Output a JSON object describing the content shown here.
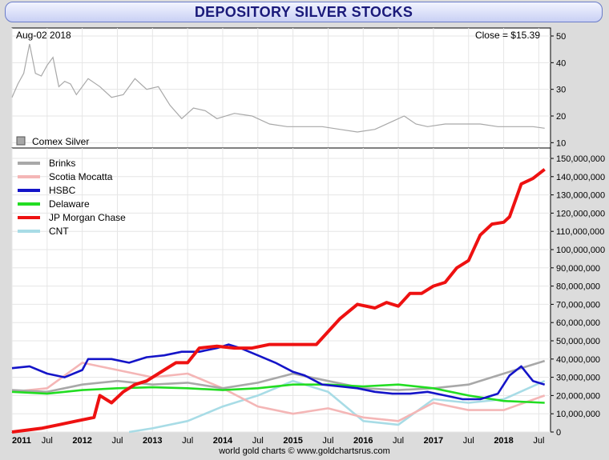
{
  "title": "DEPOSITORY SILVER STOCKS",
  "footer": "world gold charts © www.goldchartsrus.com",
  "colors": {
    "background": "#dcdcdc",
    "title_text": "#1a1a7a",
    "Brinks": "#a8a8a8",
    "Scotia Mocatta": "#f4b6b6",
    "HSBC": "#1414c8",
    "Delaware": "#22dd22",
    "JP Morgan Chase": "#ee1111",
    "CNT": "#a8dce6",
    "Comex Silver": "#a8a8a8"
  },
  "chart_data": [
    {
      "type": "line",
      "date_label": "Aug-02  2018",
      "close_label": "Close = $15.39",
      "legend": [
        "Comex Silver"
      ],
      "y_ticks": [
        10,
        20,
        30,
        40,
        50
      ],
      "ylim": [
        8,
        53
      ],
      "xlim": [
        "2011-01",
        "2018-09"
      ],
      "series": [
        {
          "name": "Comex Silver",
          "x": [
            "2011-01",
            "2011-02",
            "2011-03",
            "2011-04",
            "2011-05",
            "2011-06",
            "2011-07",
            "2011-08",
            "2011-09",
            "2011-10",
            "2011-11",
            "2011-12",
            "2012-02",
            "2012-04",
            "2012-06",
            "2012-08",
            "2012-10",
            "2012-12",
            "2013-02",
            "2013-04",
            "2013-06",
            "2013-08",
            "2013-10",
            "2013-12",
            "2014-03",
            "2014-06",
            "2014-09",
            "2014-12",
            "2015-03",
            "2015-06",
            "2015-09",
            "2015-12",
            "2016-03",
            "2016-06",
            "2016-08",
            "2016-10",
            "2016-12",
            "2017-03",
            "2017-06",
            "2017-09",
            "2017-12",
            "2018-03",
            "2018-06",
            "2018-08"
          ],
          "values": [
            27,
            32,
            36,
            47,
            36,
            35,
            39,
            42,
            31,
            33,
            32,
            28,
            34,
            31,
            27,
            28,
            34,
            30,
            31,
            24,
            19,
            23,
            22,
            19,
            21,
            20,
            17,
            16,
            16,
            16,
            15,
            14,
            15,
            18,
            20,
            17,
            16,
            17,
            17,
            17,
            16,
            16,
            16,
            15.4
          ]
        }
      ]
    },
    {
      "type": "line",
      "legend": [
        "Brinks",
        "Scotia Mocatta",
        "HSBC",
        "Delaware",
        "JP Morgan Chase",
        "CNT"
      ],
      "x_ticks": [
        "2011",
        "Jul",
        "2012",
        "Jul",
        "2013",
        "Jul",
        "2014",
        "Jul",
        "2015",
        "Jul",
        "2016",
        "Jul",
        "2017",
        "Jul",
        "2018",
        "Jul"
      ],
      "y_ticks": [
        "0",
        "10,000,000",
        "20,000,000",
        "30,000,000",
        "40,000,000",
        "50,000,000",
        "60,000,000",
        "70,000,000",
        "80,000,000",
        "90,000,000",
        "100,000,000",
        "110,000,000",
        "120,000,000",
        "130,000,000",
        "140,000,000",
        "150,000,000"
      ],
      "ylim": [
        0,
        150000000
      ],
      "xlim": [
        "2011-01",
        "2018-09"
      ],
      "series": [
        {
          "name": "JP Morgan Chase",
          "x": [
            "2011-01",
            "2011-06",
            "2011-09",
            "2011-12",
            "2012-03",
            "2012-04",
            "2012-06",
            "2012-08",
            "2012-10",
            "2012-12",
            "2013-03",
            "2013-05",
            "2013-07",
            "2013-09",
            "2013-12",
            "2014-03",
            "2014-06",
            "2014-09",
            "2014-12",
            "2015-03",
            "2015-05",
            "2015-07",
            "2015-09",
            "2015-12",
            "2016-03",
            "2016-05",
            "2016-07",
            "2016-09",
            "2016-11",
            "2017-01",
            "2017-03",
            "2017-05",
            "2017-07",
            "2017-09",
            "2017-11",
            "2018-01",
            "2018-02",
            "2018-04",
            "2018-06",
            "2018-08"
          ],
          "values": [
            0,
            2000000,
            4000000,
            6000000,
            8000000,
            20000000,
            16000000,
            22000000,
            26000000,
            28000000,
            34000000,
            38000000,
            38000000,
            46000000,
            47000000,
            46000000,
            46000000,
            48000000,
            48000000,
            48000000,
            48000000,
            55000000,
            62000000,
            70000000,
            68000000,
            71000000,
            69000000,
            76000000,
            76000000,
            80000000,
            82000000,
            90000000,
            94000000,
            108000000,
            114000000,
            115000000,
            118000000,
            136000000,
            139000000,
            144000000
          ]
        },
        {
          "name": "HSBC",
          "x": [
            "2011-01",
            "2011-04",
            "2011-07",
            "2011-10",
            "2012-01",
            "2012-02",
            "2012-06",
            "2012-09",
            "2012-12",
            "2013-03",
            "2013-06",
            "2013-09",
            "2013-12",
            "2014-02",
            "2014-04",
            "2014-07",
            "2014-10",
            "2015-01",
            "2015-03",
            "2015-06",
            "2015-09",
            "2015-12",
            "2016-03",
            "2016-06",
            "2016-09",
            "2016-12",
            "2017-03",
            "2017-06",
            "2017-09",
            "2017-12",
            "2018-02",
            "2018-04",
            "2018-06",
            "2018-08"
          ],
          "values": [
            35000000,
            36000000,
            32000000,
            30000000,
            34000000,
            40000000,
            40000000,
            38000000,
            41000000,
            42000000,
            44000000,
            44000000,
            46000000,
            48000000,
            46000000,
            42000000,
            38000000,
            33000000,
            31000000,
            26000000,
            25000000,
            24000000,
            22000000,
            21000000,
            21000000,
            22000000,
            20000000,
            18000000,
            18000000,
            21000000,
            31000000,
            36000000,
            28000000,
            26000000
          ]
        },
        {
          "name": "Delaware",
          "x": [
            "2011-01",
            "2011-07",
            "2012-01",
            "2012-07",
            "2013-01",
            "2013-07",
            "2014-01",
            "2014-07",
            "2015-01",
            "2015-07",
            "2016-01",
            "2016-07",
            "2017-01",
            "2017-07",
            "2018-01",
            "2018-08"
          ],
          "values": [
            22000000,
            21000000,
            23000000,
            24000000,
            24500000,
            24000000,
            23000000,
            24000000,
            26000000,
            26000000,
            25000000,
            26000000,
            24000000,
            20000000,
            17000000,
            16000000
          ]
        },
        {
          "name": "Brinks",
          "x": [
            "2011-01",
            "2011-07",
            "2012-01",
            "2012-07",
            "2013-01",
            "2013-07",
            "2014-01",
            "2014-07",
            "2015-01",
            "2015-07",
            "2016-01",
            "2016-07",
            "2017-01",
            "2017-07",
            "2018-01",
            "2018-08"
          ],
          "values": [
            23000000,
            22000000,
            26000000,
            28000000,
            26000000,
            27000000,
            24000000,
            27000000,
            32000000,
            28000000,
            24000000,
            23000000,
            24000000,
            26000000,
            32000000,
            39000000
          ]
        },
        {
          "name": "Scotia Mocatta",
          "x": [
            "2011-01",
            "2011-07",
            "2012-01",
            "2012-07",
            "2013-01",
            "2013-07",
            "2014-01",
            "2014-07",
            "2015-01",
            "2015-07",
            "2016-01",
            "2016-07",
            "2017-01",
            "2017-07",
            "2018-01",
            "2018-08"
          ],
          "values": [
            22000000,
            24000000,
            38000000,
            34000000,
            30000000,
            32000000,
            24000000,
            14000000,
            10000000,
            13000000,
            8000000,
            6000000,
            16000000,
            12000000,
            12000000,
            20000000
          ]
        },
        {
          "name": "CNT",
          "x": [
            "2012-09",
            "2013-01",
            "2013-07",
            "2014-01",
            "2014-07",
            "2015-01",
            "2015-07",
            "2016-01",
            "2016-07",
            "2017-01",
            "2017-07",
            "2018-01",
            "2018-08"
          ],
          "values": [
            0,
            2000000,
            6000000,
            14000000,
            20000000,
            28000000,
            22000000,
            6000000,
            4000000,
            18000000,
            16000000,
            18000000,
            28000000
          ]
        }
      ]
    }
  ]
}
